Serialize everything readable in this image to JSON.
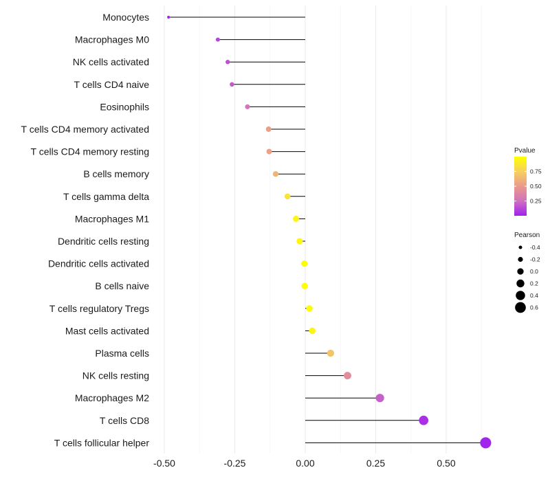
{
  "chart_data": {
    "type": "lollipop",
    "title": "",
    "xlabel": "",
    "ylabel": "",
    "xlim": [
      -0.5,
      0.65
    ],
    "x_ticks": [
      -0.5,
      -0.25,
      0.0,
      0.25,
      0.5
    ],
    "x_tick_labels": [
      "-0.50",
      "-0.25",
      "0.00",
      "0.25",
      "0.50"
    ],
    "grid": true,
    "categories": [
      "Monocytes",
      "Macrophages M0",
      "NK cells activated",
      "T cells CD4 naive",
      "Eosinophils",
      "T cells CD4 memory activated",
      "T cells CD4 memory resting",
      "B cells memory",
      "T cells gamma delta",
      "Macrophages M1",
      "Dendritic cells resting",
      "Dendritic cells activated",
      "B cells naive",
      "T cells regulatory  Tregs ",
      "Mast cells activated",
      "Plasma cells",
      "NK cells resting",
      "Macrophages M2",
      "T cells CD8",
      "T cells follicular helper"
    ],
    "values": [
      -0.485,
      -0.31,
      -0.275,
      -0.26,
      -0.205,
      -0.13,
      -0.128,
      -0.105,
      -0.063,
      -0.033,
      -0.02,
      -0.003,
      -0.002,
      0.015,
      0.025,
      0.09,
      0.15,
      0.265,
      0.42,
      0.64
    ],
    "pvalues": [
      0.02,
      0.12,
      0.15,
      0.18,
      0.28,
      0.52,
      0.53,
      0.62,
      0.85,
      0.95,
      0.97,
      0.99,
      0.99,
      0.98,
      0.95,
      0.7,
      0.42,
      0.2,
      0.05,
      0.01
    ],
    "color_legend": {
      "title": "Pvalue",
      "ticks": [
        0.75,
        0.5,
        0.25
      ],
      "tick_labels": [
        "0.75",
        "0.50",
        "0.25"
      ],
      "range": [
        0.0,
        1.0
      ],
      "gradient": [
        "#a020f0",
        "#d070c0",
        "#eb9a8a",
        "#f6d060",
        "#ffff00"
      ]
    },
    "size_legend": {
      "title": "Pearson",
      "values": [
        -0.4,
        -0.2,
        0.0,
        0.2,
        0.4,
        0.6
      ],
      "labels": [
        "-0.4",
        "-0.2",
        "0.0",
        "0.2",
        "0.4",
        "0.6"
      ]
    },
    "colors": {
      "grid": "#ebebeb",
      "stem": "#000000",
      "text": "#1a1a1a"
    }
  }
}
